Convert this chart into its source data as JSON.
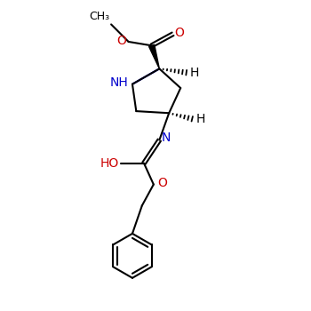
{
  "bg_color": "#ffffff",
  "bond_color": "#000000",
  "nitrogen_color": "#0000cc",
  "oxygen_color": "#cc0000",
  "line_width": 1.5,
  "font_size": 10,
  "xlim": [
    0,
    1
  ],
  "ylim": [
    -0.55,
    1.05
  ],
  "figsize": [
    3.5,
    3.5
  ],
  "dpi": 100
}
